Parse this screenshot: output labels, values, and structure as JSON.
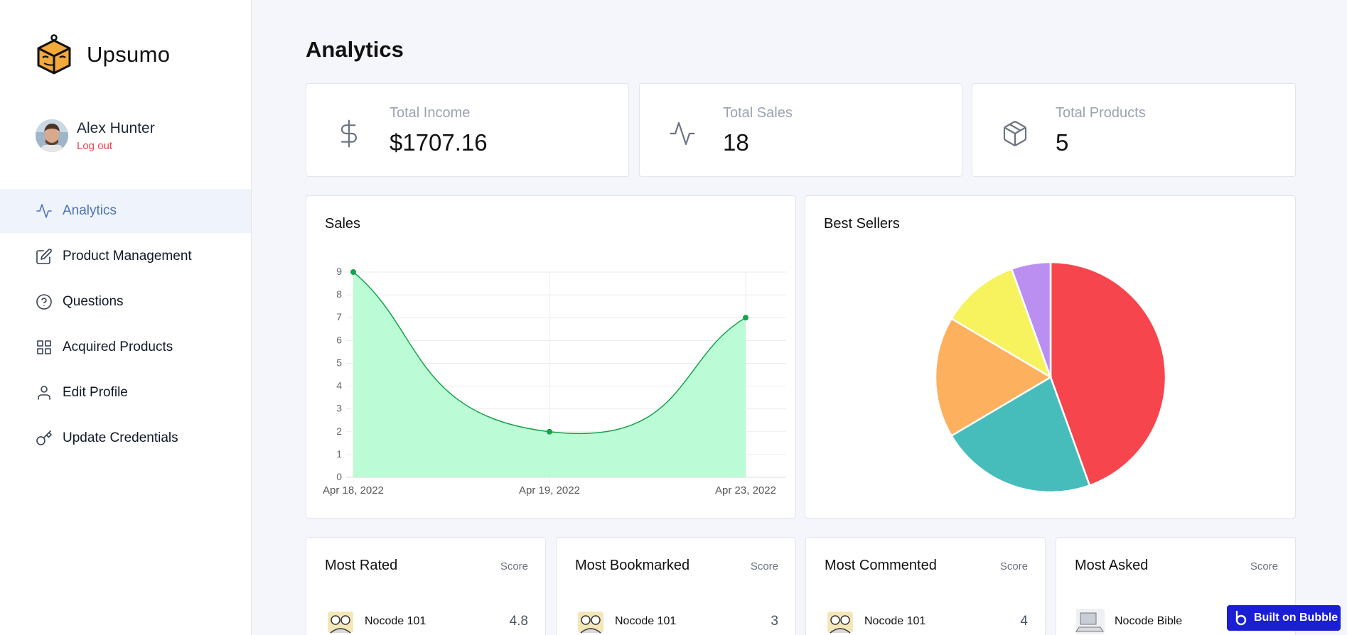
{
  "brand": {
    "name": "Upsumo"
  },
  "user": {
    "name": "Alex Hunter",
    "logout_label": "Log out"
  },
  "nav": {
    "items": [
      {
        "label": "Analytics",
        "icon": "activity-icon",
        "active": true
      },
      {
        "label": "Product Management",
        "icon": "edit-icon"
      },
      {
        "label": "Questions",
        "icon": "help-circle-icon"
      },
      {
        "label": "Acquired Products",
        "icon": "grid-icon"
      },
      {
        "label": "Edit Profile",
        "icon": "user-icon"
      },
      {
        "label": "Update Credentials",
        "icon": "key-icon"
      }
    ]
  },
  "page": {
    "title": "Analytics"
  },
  "stats": [
    {
      "label": "Total Income",
      "value": "$1707.16",
      "icon": "dollar-icon"
    },
    {
      "label": "Total Sales",
      "value": "18",
      "icon": "activity-icon"
    },
    {
      "label": "Total Products",
      "value": "5",
      "icon": "box-icon"
    }
  ],
  "sales_card": {
    "title": "Sales"
  },
  "best_sellers_card": {
    "title": "Best Sellers"
  },
  "chart_data": [
    {
      "type": "area",
      "title": "Sales",
      "categories": [
        "Apr 18, 2022",
        "Apr 19, 2022",
        "Apr 23, 2022"
      ],
      "series": [
        {
          "values": [
            9,
            2,
            7
          ]
        }
      ],
      "ylim": [
        0,
        9
      ],
      "yticks": [
        0,
        1,
        2,
        3,
        4,
        5,
        6,
        7,
        8,
        9
      ],
      "grid": true,
      "colors": {
        "line": "#16a34a",
        "fill": "#bbfcd6",
        "point": "#16a34a"
      }
    },
    {
      "type": "pie",
      "title": "Best Sellers",
      "values": [
        44.5,
        22.0,
        17.0,
        11.0,
        5.5
      ],
      "colors": [
        "#f6454d",
        "#47bdbb",
        "#fdb05e",
        "#f6f35e",
        "#bb8ff1"
      ]
    }
  ],
  "lists": [
    {
      "title": "Most Rated",
      "score_label": "Score",
      "item": "Nocode 101",
      "score": "4.8"
    },
    {
      "title": "Most Bookmarked",
      "score_label": "Score",
      "item": "Nocode 101",
      "score": "3"
    },
    {
      "title": "Most Commented",
      "score_label": "Score",
      "item": "Nocode 101",
      "score": "4"
    },
    {
      "title": "Most Asked",
      "score_label": "Score",
      "item": "Nocode Bible",
      "score": ""
    }
  ],
  "badge": {
    "label": "Built on Bubble"
  }
}
